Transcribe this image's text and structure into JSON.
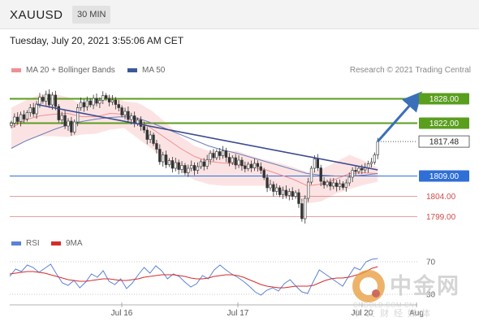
{
  "header": {
    "symbol": "XAUUSD",
    "timeframe": "30 MIN"
  },
  "datetime": "Tuesday, July 20, 2021 3:55:06 AM CET",
  "legend": {
    "items": [
      {
        "label": "MA 20 + Bollinger Bands",
        "color": "#f08f94"
      },
      {
        "label": "MA 50",
        "color": "#3b5998"
      }
    ],
    "credit": "Research © 2021 Trading Central"
  },
  "rsi_legend": {
    "items": [
      {
        "label": "RSI",
        "color": "#5b82d6"
      },
      {
        "label": "9MA",
        "color": "#d62b2b"
      }
    ]
  },
  "watermark": {
    "cn": "中金网",
    "url": "CNGOLD.COM.CN",
    "sub": "中文财经媒体"
  },
  "chart_data": [
    {
      "type": "candlestick",
      "y_unit": "USD",
      "ylim": [
        1795.3,
        1833.3
      ],
      "x_ticks": [
        "Jul 16",
        "Jul 17",
        "Jul 20",
        "Aug"
      ],
      "grid": false,
      "legend_position": "top-left",
      "price_levels": [
        {
          "label": "1828.00",
          "value": 1828.0,
          "kind": "resistance",
          "color": "#5a9e1e"
        },
        {
          "label": "1822.00",
          "value": 1822.0,
          "kind": "resistance",
          "color": "#5a9e1e"
        },
        {
          "label": "1817.48",
          "value": 1817.48,
          "kind": "last",
          "color": "#333333"
        },
        {
          "label": "1809.00",
          "value": 1809.0,
          "kind": "pivot",
          "color": "#2f6fd6"
        },
        {
          "label": "1804.00",
          "value": 1804.0,
          "kind": "support",
          "color": "#d04a4a"
        },
        {
          "label": "1799.00",
          "value": 1799.0,
          "kind": "support",
          "color": "#d04a4a"
        }
      ],
      "closes": [
        1822.0,
        1823.5,
        1822.4,
        1824.1,
        1823.0,
        1824.6,
        1825.8,
        1824.3,
        1826.7,
        1828.4,
        1827.4,
        1829.1,
        1826.5,
        1828.9,
        1826.1,
        1822.8,
        1823.9,
        1821.3,
        1822.5,
        1819.8,
        1822.3,
        1825.8,
        1827.1,
        1826.0,
        1827.5,
        1826.5,
        1828.1,
        1826.9,
        1827.6,
        1828.8,
        1828.1,
        1827.2,
        1827.7,
        1826.6,
        1825.8,
        1824.0,
        1824.9,
        1822.9,
        1823.8,
        1821.9,
        1822.8,
        1821.2,
        1820.3,
        1818.0,
        1819.1,
        1817.0,
        1815.6,
        1812.5,
        1814.2,
        1811.8,
        1812.8,
        1810.9,
        1812.3,
        1810.6,
        1811.6,
        1809.8,
        1810.9,
        1811.6,
        1810.4,
        1811.3,
        1812.5,
        1811.4,
        1813.0,
        1814.6,
        1813.5,
        1815.0,
        1814.0,
        1815.2,
        1813.6,
        1812.3,
        1813.5,
        1811.7,
        1812.9,
        1811.5,
        1810.8,
        1811.9,
        1811.0,
        1812.1,
        1811.3,
        1810.4,
        1808.6,
        1806.1,
        1806.9,
        1805.2,
        1806.1,
        1804.4,
        1805.5,
        1804.2,
        1805.2,
        1804.0,
        1804.9,
        1802.2,
        1798.5,
        1803.5,
        1807.5,
        1810.9,
        1813.2,
        1811.0,
        1807.7,
        1806.8,
        1807.5,
        1806.5,
        1807.3,
        1806.4,
        1807.1,
        1806.2,
        1807.3,
        1808.7,
        1810.4,
        1810.1,
        1810.9,
        1810.5,
        1811.0,
        1812.0,
        1812.4,
        1814.2,
        1817.48
      ],
      "bb_upper": [
        1825.8,
        1827.6,
        1829.0,
        1829.2,
        1828.4,
        1826.6,
        1827.6,
        1828.8,
        1827.4,
        1827.0,
        1825.0,
        1822.0,
        1818.8,
        1816.4,
        1815.2,
        1815.0,
        1815.2,
        1814.0,
        1813.0,
        1812.2,
        1811.2,
        1810.0,
        1810.6,
        1812.4,
        1814.2,
        1812.8,
        1811.0
      ],
      "bb_lower": [
        1815.8,
        1817.8,
        1818.8,
        1818.8,
        1818.6,
        1819.2,
        1819.4,
        1820.4,
        1820.8,
        1818.2,
        1815.6,
        1812.6,
        1810.2,
        1808.0,
        1807.0,
        1806.6,
        1806.6,
        1806.6,
        1806.6,
        1805.6,
        1804.2,
        1802.2,
        1802.8,
        1804.6,
        1805.8,
        1806.8,
        1807.6
      ],
      "ma20": [
        1820.8,
        1822.8,
        1823.8,
        1824.2,
        1824.4,
        1823.6,
        1823.6,
        1824.4,
        1824.2,
        1822.8,
        1820.6,
        1818.2,
        1815.8,
        1813.8,
        1812.6,
        1812.2,
        1812.0,
        1811.2,
        1810.6,
        1809.4,
        1808.2,
        1806.6,
        1807.0,
        1808.2,
        1809.6,
        1809.8,
        1809.6
      ],
      "ma50": [
        1815.8,
        1817.6,
        1819.0,
        1820.4,
        1821.6,
        1822.4,
        1823.0,
        1823.4,
        1823.6,
        1823.2,
        1822.0,
        1820.6,
        1819.2,
        1817.8,
        1816.4,
        1815.4,
        1814.6,
        1813.6,
        1812.6,
        1811.6,
        1810.6,
        1809.6,
        1809.2,
        1809.0,
        1809.0,
        1809.2,
        1809.6
      ],
      "trendline": [
        [
          8,
          1826.6
        ],
        [
          116,
          1810.5
        ]
      ],
      "projection": [
        [
          116,
          1817.5
        ],
        [
          128,
          1828.0
        ]
      ]
    },
    {
      "type": "line",
      "indicator": "RSI",
      "ylim": [
        20,
        80
      ],
      "levels": [
        {
          "label": "70",
          "value": 70
        },
        {
          "label": "30",
          "value": 30
        }
      ],
      "series": [
        {
          "name": "RSI",
          "values": [
            52,
            61,
            58,
            66,
            63,
            57,
            62,
            67,
            55,
            44,
            41,
            47,
            38,
            45,
            55,
            51,
            59,
            46,
            42,
            49,
            37,
            44,
            54,
            63,
            56,
            65,
            59,
            49,
            55,
            52,
            45,
            39,
            43,
            53,
            49,
            60,
            66,
            60,
            55,
            51,
            46,
            40,
            33,
            29,
            35,
            38,
            34,
            43,
            48,
            40,
            33,
            31,
            46,
            60,
            55,
            50,
            45,
            40,
            52,
            63,
            60,
            70,
            73,
            74
          ]
        },
        {
          "name": "9MA",
          "values": [
            55,
            56,
            57,
            58,
            58,
            57,
            56,
            54,
            52,
            50,
            48,
            47,
            46,
            46,
            47,
            48,
            49,
            49,
            48,
            47,
            47,
            48,
            49,
            51,
            52,
            53,
            54,
            54,
            54,
            53,
            52,
            50,
            49,
            49,
            50,
            52,
            53,
            54,
            54,
            53,
            51,
            48,
            45,
            42,
            40,
            39,
            38,
            38,
            39,
            40,
            40,
            40,
            41,
            44,
            47,
            49,
            50,
            50,
            51,
            53,
            55,
            58,
            62,
            64
          ]
        }
      ]
    }
  ]
}
